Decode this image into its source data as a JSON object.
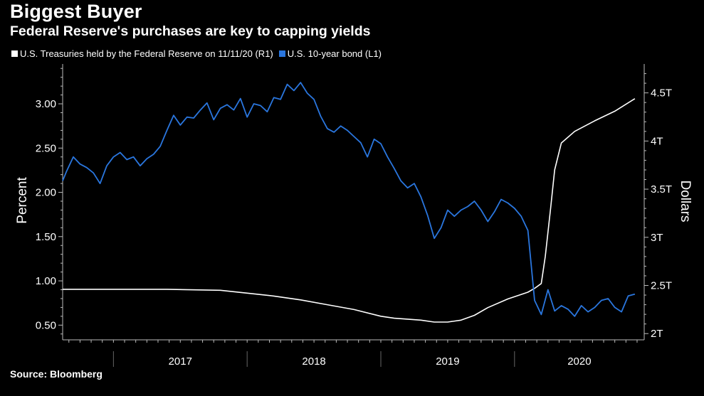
{
  "header": {
    "title": "Biggest Buyer",
    "subtitle": "Federal Reserve's purchases are key to capping yields"
  },
  "source": "Source: Bloomberg",
  "chart_data": {
    "type": "line",
    "title": "Biggest Buyer",
    "subtitle": "Federal Reserve's purchases are key to capping yields",
    "x_range": [
      2016.62,
      2020.97
    ],
    "x_tick_labels": [
      "2017",
      "2018",
      "2019",
      "2020"
    ],
    "x_tick_positions": [
      2017.0,
      2018.0,
      2019.0,
      2020.0
    ],
    "left_axis": {
      "label": "Percent",
      "range": [
        0.35,
        3.45
      ],
      "ticks": [
        0.5,
        1.0,
        1.5,
        2.0,
        2.5,
        3.0
      ],
      "tick_labels": [
        "0.50",
        "1.00",
        "1.50",
        "2.00",
        "2.50",
        "3.00"
      ]
    },
    "right_axis": {
      "label": "Dollars",
      "range": [
        1.95,
        4.8
      ],
      "ticks": [
        2.0,
        2.5,
        3.0,
        3.5,
        4.0,
        4.5
      ],
      "tick_labels": [
        "2T",
        "2.5T",
        "3T",
        "3.5T",
        "4T",
        "4.5T"
      ]
    },
    "series": [
      {
        "name": "U.S. Treasuries held by the Federal Reserve on 11/11/20 (R1)",
        "axis": "right",
        "color": "#ffffff",
        "x": [
          2016.62,
          2017.0,
          2017.4,
          2017.8,
          2018.0,
          2018.2,
          2018.4,
          2018.6,
          2018.8,
          2019.0,
          2019.1,
          2019.2,
          2019.3,
          2019.4,
          2019.5,
          2019.6,
          2019.7,
          2019.8,
          2019.95,
          2020.1,
          2020.15,
          2020.2,
          2020.23,
          2020.27,
          2020.3,
          2020.35,
          2020.45,
          2020.6,
          2020.75,
          2020.9
        ],
        "values": [
          2.46,
          2.46,
          2.46,
          2.45,
          2.42,
          2.39,
          2.35,
          2.3,
          2.25,
          2.18,
          2.16,
          2.15,
          2.14,
          2.12,
          2.12,
          2.14,
          2.19,
          2.27,
          2.36,
          2.43,
          2.47,
          2.52,
          2.8,
          3.3,
          3.7,
          3.98,
          4.1,
          4.21,
          4.31,
          4.44
        ]
      },
      {
        "name": "U.S. 10-year bond (L1)",
        "axis": "left",
        "color": "#2a76de",
        "x": [
          2016.62,
          2016.65,
          2016.7,
          2016.75,
          2016.8,
          2016.85,
          2016.9,
          2016.95,
          2017.0,
          2017.05,
          2017.1,
          2017.15,
          2017.2,
          2017.25,
          2017.3,
          2017.35,
          2017.4,
          2017.45,
          2017.5,
          2017.55,
          2017.6,
          2017.65,
          2017.7,
          2017.75,
          2017.8,
          2017.85,
          2017.9,
          2017.95,
          2018.0,
          2018.05,
          2018.1,
          2018.15,
          2018.2,
          2018.25,
          2018.3,
          2018.35,
          2018.4,
          2018.45,
          2018.5,
          2018.55,
          2018.6,
          2018.65,
          2018.7,
          2018.75,
          2018.8,
          2018.85,
          2018.9,
          2018.95,
          2019.0,
          2019.05,
          2019.1,
          2019.15,
          2019.2,
          2019.25,
          2019.3,
          2019.35,
          2019.4,
          2019.45,
          2019.5,
          2019.55,
          2019.6,
          2019.65,
          2019.7,
          2019.75,
          2019.8,
          2019.85,
          2019.9,
          2019.95,
          2020.0,
          2020.05,
          2020.1,
          2020.15,
          2020.2,
          2020.25,
          2020.3,
          2020.35,
          2020.4,
          2020.45,
          2020.5,
          2020.55,
          2020.6,
          2020.65,
          2020.7,
          2020.75,
          2020.8,
          2020.85,
          2020.9
        ],
        "values": [
          2.13,
          2.24,
          2.4,
          2.32,
          2.28,
          2.22,
          2.1,
          2.3,
          2.4,
          2.45,
          2.37,
          2.4,
          2.3,
          2.38,
          2.43,
          2.52,
          2.7,
          2.87,
          2.76,
          2.85,
          2.84,
          2.93,
          3.01,
          2.82,
          2.95,
          2.99,
          2.93,
          3.06,
          2.85,
          3.0,
          2.98,
          2.91,
          3.07,
          3.05,
          3.22,
          3.15,
          3.24,
          3.12,
          3.05,
          2.86,
          2.72,
          2.68,
          2.75,
          2.7,
          2.63,
          2.56,
          2.4,
          2.6,
          2.55,
          2.4,
          2.27,
          2.13,
          2.05,
          2.1,
          1.95,
          1.74,
          1.48,
          1.6,
          1.8,
          1.73,
          1.8,
          1.84,
          1.9,
          1.8,
          1.67,
          1.78,
          1.92,
          1.88,
          1.82,
          1.73,
          1.57,
          0.78,
          0.62,
          0.9,
          0.66,
          0.72,
          0.68,
          0.6,
          0.72,
          0.65,
          0.7,
          0.78,
          0.8,
          0.7,
          0.65,
          0.83,
          0.85
        ]
      }
    ]
  }
}
